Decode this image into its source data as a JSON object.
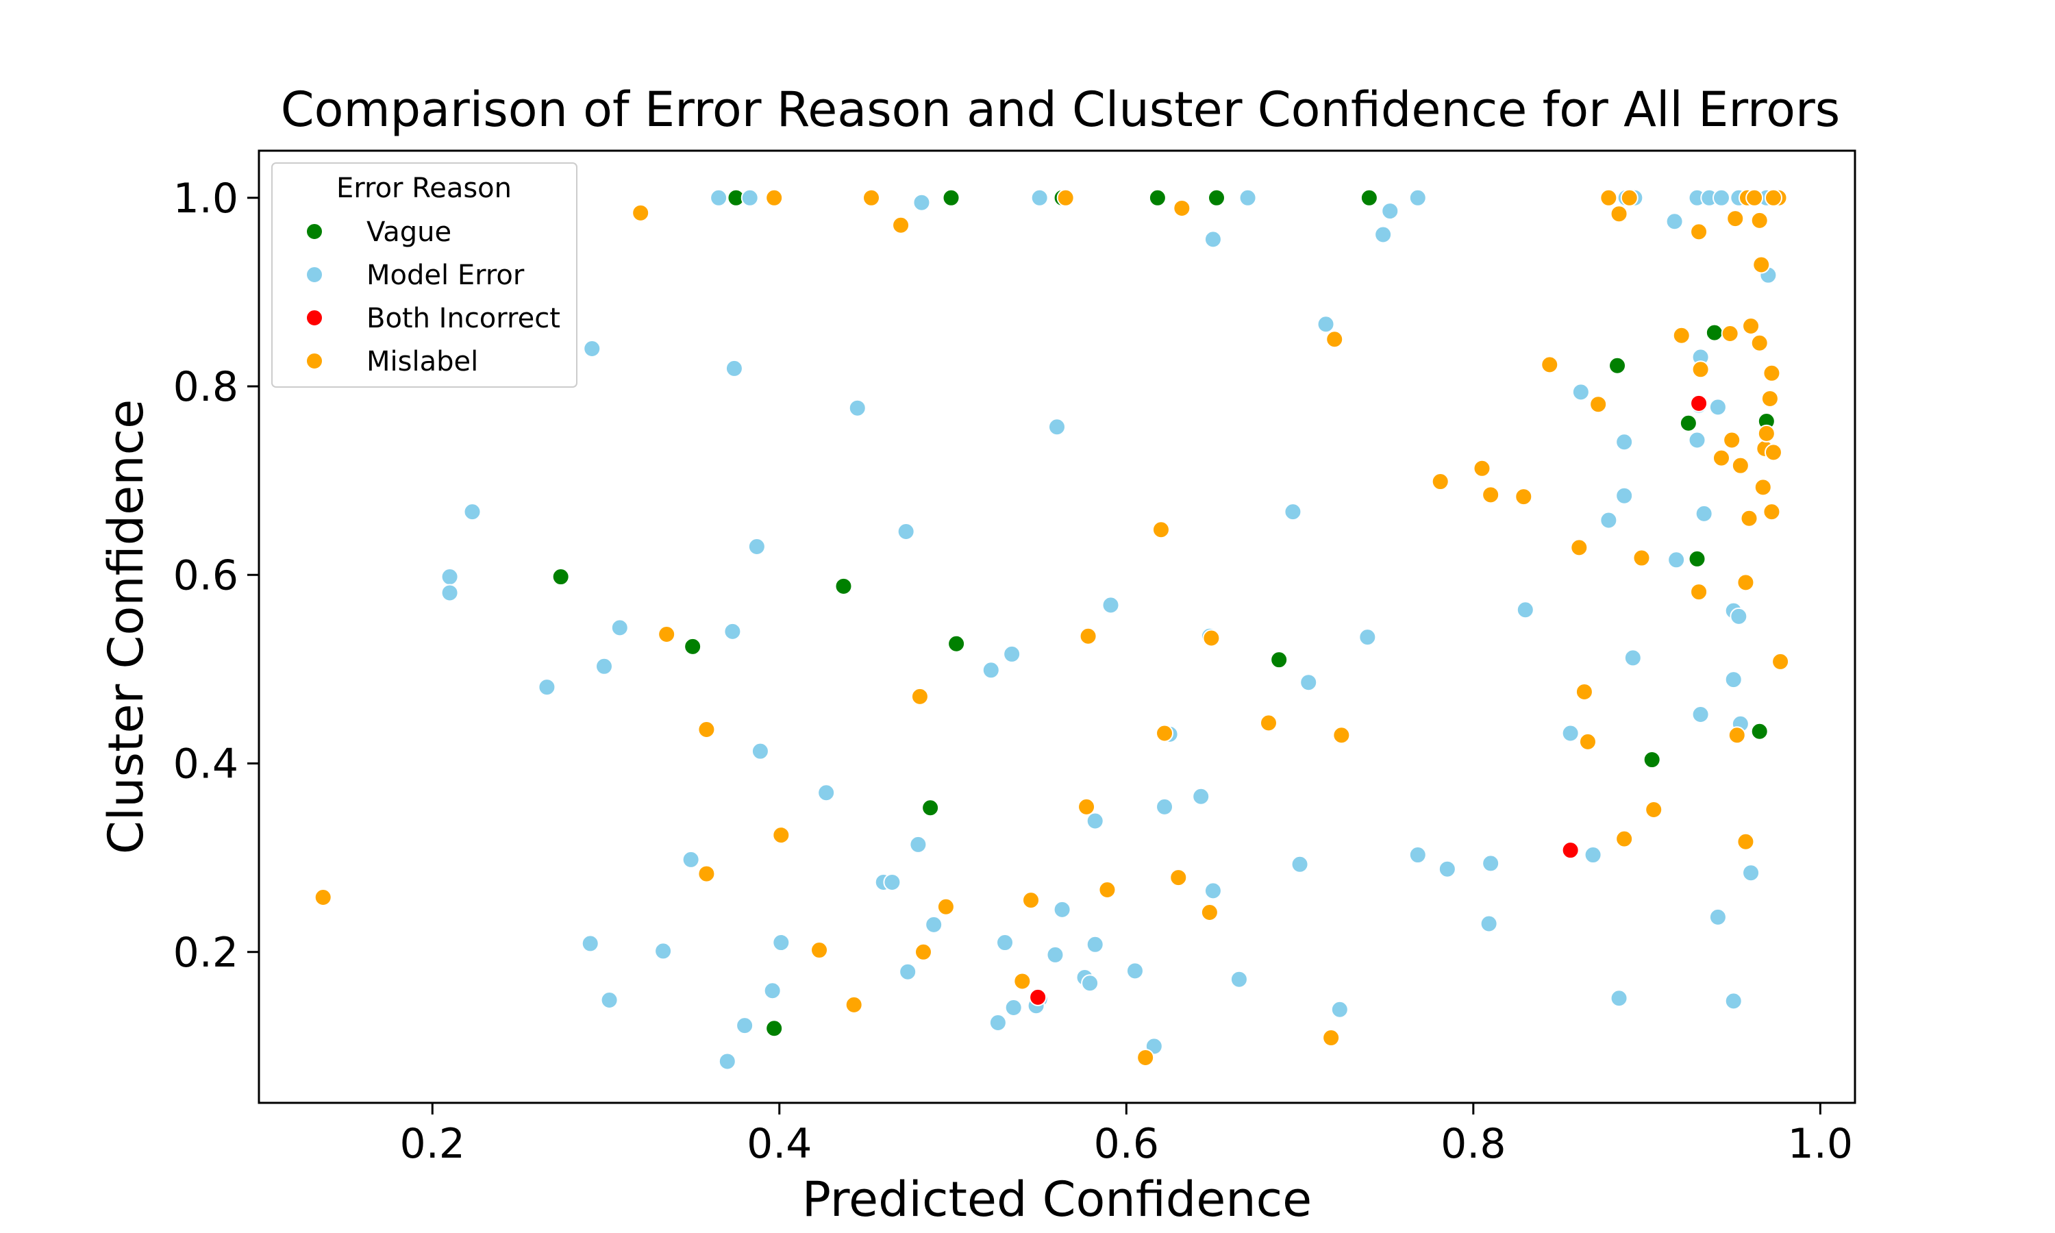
{
  "chart_data": {
    "type": "scatter",
    "title": "Comparison of Error Reason and Cluster Confidence for All Errors",
    "xlabel": "Predicted Confidence",
    "ylabel": "Cluster Confidence",
    "xlim": [
      0.1,
      1.02
    ],
    "ylim": [
      0.04,
      1.05
    ],
    "xticks": [
      0.2,
      0.4,
      0.6,
      0.8,
      1.0
    ],
    "yticks": [
      0.2,
      0.4,
      0.6,
      0.8,
      1.0
    ],
    "xtick_labels": [
      "0.2",
      "0.4",
      "0.6",
      "0.8",
      "1.0"
    ],
    "ytick_labels": [
      "0.2",
      "0.4",
      "0.6",
      "0.8",
      "1.0"
    ],
    "grid": false,
    "legend": {
      "title": "Error Reason",
      "placement": "top-left"
    },
    "series": [
      {
        "name": "Vague",
        "color": "#008000",
        "x": [
          0.375,
          0.499,
          0.563,
          0.618,
          0.652,
          0.74,
          0.939,
          0.883,
          0.924,
          0.969,
          0.929,
          0.274,
          0.437,
          0.35,
          0.502,
          0.688,
          0.487,
          0.903,
          0.965,
          0.397
        ],
        "y": [
          1.0,
          1.0,
          1.0,
          1.0,
          1.0,
          1.0,
          0.857,
          0.822,
          0.761,
          0.763,
          0.617,
          0.598,
          0.588,
          0.524,
          0.527,
          0.51,
          0.353,
          0.404,
          0.434,
          0.119
        ]
      },
      {
        "name": "Model Error",
        "color": "#87CEEB",
        "x": [
          0.365,
          0.383,
          0.482,
          0.55,
          0.67,
          0.65,
          0.752,
          0.748,
          0.768,
          0.888,
          0.893,
          0.916,
          0.929,
          0.936,
          0.943,
          0.953,
          0.961,
          0.97,
          0.715,
          0.292,
          0.374,
          0.445,
          0.56,
          0.223,
          0.21,
          0.21,
          0.387,
          0.473,
          0.696,
          0.308,
          0.373,
          0.299,
          0.266,
          0.591,
          0.534,
          0.522,
          0.648,
          0.705,
          0.739,
          0.83,
          0.389,
          0.427,
          0.625,
          0.643,
          0.582,
          0.622,
          0.349,
          0.48,
          0.46,
          0.465,
          0.489,
          0.65,
          0.291,
          0.333,
          0.302,
          0.401,
          0.396,
          0.474,
          0.38,
          0.37,
          0.53,
          0.526,
          0.535,
          0.55,
          0.548,
          0.559,
          0.563,
          0.576,
          0.579,
          0.582,
          0.605,
          0.616,
          0.665,
          0.7,
          0.723,
          0.768,
          0.785,
          0.81,
          0.809,
          0.856,
          0.869,
          0.862,
          0.887,
          0.878,
          0.887,
          0.931,
          0.933,
          0.941,
          0.93,
          0.929,
          0.95,
          0.953,
          0.892,
          0.917,
          0.95,
          0.954,
          0.96,
          0.941,
          0.884,
          0.95,
          0.931,
          0.969
        ],
        "y": [
          1.0,
          1.0,
          0.995,
          1.0,
          1.0,
          0.956,
          0.986,
          0.961,
          1.0,
          1.0,
          1.0,
          0.975,
          1.0,
          1.0,
          1.0,
          1.0,
          1.0,
          0.918,
          0.866,
          0.84,
          0.819,
          0.777,
          0.757,
          0.667,
          0.598,
          0.581,
          0.63,
          0.646,
          0.667,
          0.544,
          0.54,
          0.503,
          0.481,
          0.568,
          0.516,
          0.499,
          0.535,
          0.486,
          0.534,
          0.563,
          0.413,
          0.369,
          0.431,
          0.365,
          0.339,
          0.354,
          0.298,
          0.314,
          0.274,
          0.274,
          0.229,
          0.265,
          0.209,
          0.201,
          0.149,
          0.21,
          0.159,
          0.179,
          0.122,
          0.084,
          0.21,
          0.125,
          0.141,
          0.15,
          0.143,
          0.197,
          0.245,
          0.173,
          0.167,
          0.208,
          0.18,
          0.1,
          0.171,
          0.293,
          0.139,
          0.303,
          0.288,
          0.294,
          0.23,
          0.432,
          0.303,
          0.794,
          0.741,
          0.658,
          0.684,
          0.831,
          0.665,
          0.778,
          0.78,
          0.743,
          0.562,
          0.556,
          0.512,
          0.616,
          0.489,
          0.442,
          0.284,
          0.237,
          0.151,
          0.148,
          0.452,
          1.0
        ],
        "empty": "Model Error"
      },
      {
        "name": "Both Incorrect",
        "color": "#FF0000",
        "x": [
          0.856,
          0.93,
          0.549
        ],
        "y": [
          0.308,
          0.782,
          0.152
        ]
      },
      {
        "name": "Mislabel",
        "color": "#FFA500",
        "x": [
          0.397,
          0.453,
          0.32,
          0.47,
          0.565,
          0.632,
          0.878,
          0.884,
          0.89,
          0.93,
          0.951,
          0.958,
          0.962,
          0.965,
          0.976,
          0.966,
          0.973,
          0.72,
          0.92,
          0.948,
          0.96,
          0.965,
          0.844,
          0.931,
          0.972,
          0.872,
          0.971,
          0.949,
          0.943,
          0.954,
          0.968,
          0.973,
          0.969,
          0.805,
          0.781,
          0.81,
          0.829,
          0.967,
          0.959,
          0.972,
          0.62,
          0.861,
          0.897,
          0.93,
          0.957,
          0.335,
          0.578,
          0.649,
          0.358,
          0.481,
          0.622,
          0.682,
          0.724,
          0.864,
          0.866,
          0.952,
          0.977,
          0.577,
          0.401,
          0.589,
          0.904,
          0.887,
          0.957,
          0.137,
          0.358,
          0.63,
          0.545,
          0.496,
          0.483,
          0.423,
          0.648,
          0.443,
          0.54,
          0.611,
          0.718
        ],
        "y": [
          1.0,
          1.0,
          0.984,
          0.971,
          1.0,
          0.989,
          1.0,
          0.983,
          1.0,
          0.964,
          0.978,
          1.0,
          1.0,
          0.976,
          1.0,
          0.929,
          1.0,
          0.85,
          0.854,
          0.856,
          0.864,
          0.846,
          0.823,
          0.818,
          0.814,
          0.781,
          0.787,
          0.743,
          0.724,
          0.716,
          0.734,
          0.73,
          0.75,
          0.713,
          0.699,
          0.685,
          0.683,
          0.693,
          0.66,
          0.667,
          0.648,
          0.629,
          0.618,
          0.582,
          0.592,
          0.537,
          0.535,
          0.533,
          0.436,
          0.471,
          0.432,
          0.443,
          0.43,
          0.476,
          0.423,
          0.43,
          0.508,
          0.354,
          0.324,
          0.266,
          0.351,
          0.32,
          0.317,
          0.258,
          0.283,
          0.279,
          0.255,
          0.248,
          0.2,
          0.202,
          0.242,
          0.144,
          0.169,
          0.088,
          0.109
        ]
      }
    ]
  }
}
